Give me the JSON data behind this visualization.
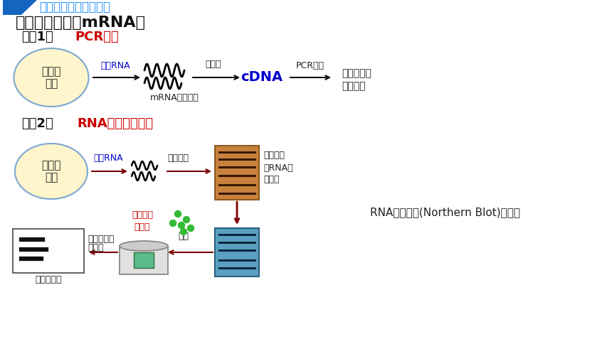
{
  "bg_color": "#ffffff",
  "title_bar_color": "#1565C0",
  "title_text": "目的基因的检测与鉴定",
  "title_color": "#1E90FF",
  "heading1": "基因是否转录（mRNA）",
  "method1_pre": "方法1：",
  "method1_red": "PCR扩增",
  "method2_pre": "方法2：",
  "method2_red": "RNA分子杂交技术",
  "cell_fill": "#FFF5CC",
  "cell_stroke": "#7BA7D0",
  "cell_line1": "转基因",
  "cell_line2": "生物",
  "extract_rna_blue": "提取RNA",
  "mrna_template": "mRNA作为模板",
  "reverse_trans": "逆转录",
  "cdna_text": "cDNA",
  "cdna_color": "#0000CD",
  "pcr_label": "PCR操作",
  "result_label": "是否扩增出\n目的基因",
  "electro_label": "电泳分离",
  "diff_size_label": "不同大小\n的RNA被\n分离开",
  "labeled_probe": "标记的基\n因探针",
  "labeled_color": "#CC0000",
  "hybrid_label": "杂交",
  "wash_label": "洗去未结合\n的探针",
  "radio_label": "放射自显影",
  "northern_label": "RNA分子杂交(Northern Blot)流程图",
  "gel_orange": "#C8813C",
  "gel_blue": "#5B9FC0",
  "probe_green": "#33BB33",
  "arrow_dark": "#7B0000",
  "arrow_black": "#111111"
}
